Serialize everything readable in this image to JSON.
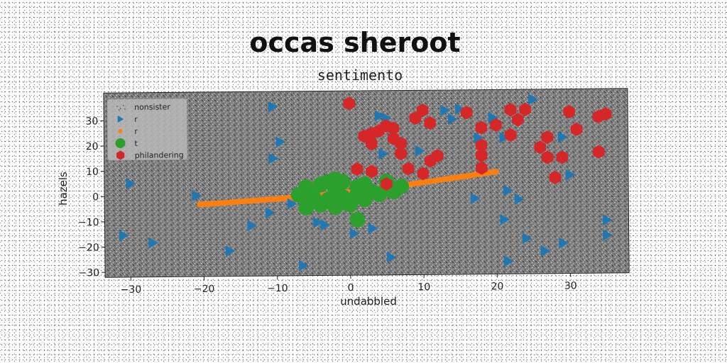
{
  "chart_data": {
    "type": "scatter",
    "suptitle": "occas sheroot",
    "title": "sentimento",
    "xlabel": "undabbled",
    "ylabel": "hazels",
    "xlim": [
      -33.5,
      38
    ],
    "ylim": [
      -32,
      41
    ],
    "xticks": [
      -30,
      -20,
      -10,
      0,
      10,
      20,
      30
    ],
    "yticks": [
      -30,
      -20,
      -10,
      0,
      10,
      20,
      30
    ],
    "xtick_labels": [
      "−30",
      "−20",
      "−10",
      "0",
      "10",
      "20",
      "30"
    ],
    "ytick_labels": [
      "−30",
      "−20",
      "−10",
      "0",
      "10",
      "20",
      "30"
    ],
    "grid": false,
    "legend_position": "upper left",
    "plot_background": "#7f7f7f",
    "series": [
      {
        "name": "nonsister",
        "marker": "speckle",
        "color": "#ffffff",
        "points": []
      },
      {
        "name": "r",
        "marker": "triangle-right",
        "color": "#1f77b4",
        "points": [
          [
            -10.5,
            35
          ],
          [
            -9.5,
            21
          ],
          [
            -10.5,
            14.5
          ],
          [
            -30,
            5
          ],
          [
            -21,
            0
          ],
          [
            -11,
            -7
          ],
          [
            -13.5,
            -12
          ],
          [
            -31,
            -15.5
          ],
          [
            -27,
            -18.5
          ],
          [
            -16.5,
            -22
          ],
          [
            -6.5,
            -28
          ],
          [
            -8,
            -3.5
          ],
          [
            -4.5,
            -11
          ],
          [
            -3.5,
            -12
          ],
          [
            0.5,
            -15.5
          ],
          [
            3,
            -13.5
          ],
          [
            5.5,
            -25
          ],
          [
            4,
            31
          ],
          [
            5,
            30
          ],
          [
            4.5,
            16
          ],
          [
            9.5,
            17
          ],
          [
            13,
            33
          ],
          [
            15,
            33.5
          ],
          [
            14,
            29.5
          ],
          [
            17.5,
            22
          ],
          [
            19.5,
            30
          ],
          [
            25,
            37
          ],
          [
            21,
            22
          ],
          [
            21.5,
            1
          ],
          [
            17,
            -2
          ],
          [
            23,
            -2.5
          ],
          [
            21,
            -10.5
          ],
          [
            24,
            -18
          ],
          [
            21.5,
            -27
          ],
          [
            26.5,
            -23
          ],
          [
            29,
            -20
          ],
          [
            30,
            7
          ],
          [
            29,
            22
          ],
          [
            35,
            -11
          ],
          [
            35,
            -17
          ]
        ]
      },
      {
        "name": "r",
        "marker": "line-of-dots",
        "color": "#ff7f0e",
        "points": [
          [
            -20.5,
            -3.5
          ],
          [
            -15,
            -2.5
          ],
          [
            -10,
            -1.5
          ],
          [
            -5,
            -0.5
          ],
          [
            0,
            1
          ],
          [
            5,
            2.5
          ],
          [
            10,
            4.5
          ],
          [
            15,
            6.5
          ],
          [
            20,
            8.5
          ]
        ]
      },
      {
        "name": "t",
        "marker": "circle",
        "color": "#2ca02c",
        "points": [
          [
            -7,
            0
          ],
          [
            -6,
            3
          ],
          [
            -5,
            -1
          ],
          [
            -6,
            -5
          ],
          [
            -4,
            4
          ],
          [
            -3,
            5
          ],
          [
            -2,
            6
          ],
          [
            -1,
            5
          ],
          [
            -2,
            2
          ],
          [
            -3,
            -2
          ],
          [
            -1,
            -3
          ],
          [
            -2,
            -5
          ],
          [
            0,
            -4
          ],
          [
            1,
            0
          ],
          [
            1,
            3
          ],
          [
            2,
            4
          ],
          [
            3,
            1
          ],
          [
            4,
            0
          ],
          [
            5,
            2
          ],
          [
            2,
            -2
          ],
          [
            -1,
            -1
          ],
          [
            6,
            1
          ],
          [
            7,
            3
          ],
          [
            5,
            5
          ],
          [
            -4,
            -4
          ],
          [
            1,
            -10
          ]
        ]
      },
      {
        "name": "philandering",
        "marker": "hexagon",
        "color": "#d62728",
        "points": [
          [
            0,
            36
          ],
          [
            2,
            23
          ],
          [
            3,
            20
          ],
          [
            4,
            25
          ],
          [
            5,
            27
          ],
          [
            6,
            26
          ],
          [
            7,
            20
          ],
          [
            7,
            16
          ],
          [
            8,
            10
          ],
          [
            10,
            8
          ],
          [
            11,
            13
          ],
          [
            12,
            15
          ],
          [
            9,
            30
          ],
          [
            10,
            33
          ],
          [
            11,
            28
          ],
          [
            16,
            32
          ],
          [
            18,
            26
          ],
          [
            18,
            19
          ],
          [
            18,
            15
          ],
          [
            18,
            10
          ],
          [
            20,
            27
          ],
          [
            22,
            23
          ],
          [
            22,
            33
          ],
          [
            23,
            29
          ],
          [
            24,
            33
          ],
          [
            26,
            18
          ],
          [
            27,
            22
          ],
          [
            27,
            14
          ],
          [
            28,
            6
          ],
          [
            29,
            14
          ],
          [
            30,
            32
          ],
          [
            31,
            25
          ],
          [
            34,
            30
          ],
          [
            35,
            31
          ],
          [
            34,
            16
          ],
          [
            1,
            10
          ],
          [
            3,
            9
          ],
          [
            5,
            4
          ],
          [
            6,
            22
          ],
          [
            3,
            24
          ]
        ]
      }
    ]
  }
}
